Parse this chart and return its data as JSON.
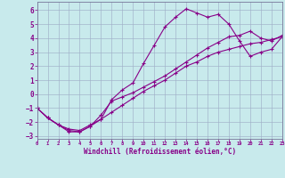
{
  "xlabel": "Windchill (Refroidissement éolien,°C)",
  "xlim": [
    0,
    23
  ],
  "ylim": [
    -3.2,
    6.6
  ],
  "xticks": [
    0,
    1,
    2,
    3,
    4,
    5,
    6,
    7,
    8,
    9,
    10,
    11,
    12,
    13,
    14,
    15,
    16,
    17,
    18,
    19,
    20,
    21,
    22,
    23
  ],
  "yticks": [
    -3,
    -2,
    -1,
    0,
    1,
    2,
    3,
    4,
    5,
    6
  ],
  "background_color": "#c8eaec",
  "line_color": "#880088",
  "grid_color": "#a0b0c8",
  "line1_x": [
    0,
    1,
    2,
    3,
    4,
    5,
    6,
    7,
    8,
    9,
    10,
    11,
    12,
    13,
    14,
    15,
    16,
    17,
    18,
    19,
    20,
    21,
    22,
    23
  ],
  "line1_y": [
    -1.0,
    -1.7,
    -2.2,
    -2.5,
    -2.6,
    -2.2,
    -1.8,
    -1.3,
    -0.8,
    -0.3,
    0.2,
    0.6,
    1.0,
    1.5,
    2.0,
    2.3,
    2.7,
    3.0,
    3.2,
    3.4,
    3.6,
    3.7,
    3.9,
    4.1
  ],
  "line2_x": [
    0,
    1,
    2,
    3,
    4,
    5,
    6,
    7,
    8,
    9,
    10,
    11,
    12,
    13,
    14,
    15,
    16,
    17,
    18,
    19,
    20,
    21,
    22,
    23
  ],
  "line2_y": [
    -1.0,
    -1.7,
    -2.2,
    -2.7,
    -2.7,
    -2.3,
    -1.8,
    -0.4,
    0.3,
    0.8,
    2.2,
    3.5,
    4.8,
    5.5,
    6.1,
    5.8,
    5.5,
    5.7,
    5.0,
    3.8,
    2.7,
    3.0,
    3.2,
    4.1
  ],
  "line3_x": [
    0,
    1,
    2,
    3,
    4,
    5,
    6,
    7,
    8,
    9,
    10,
    11,
    12,
    13,
    14,
    15,
    16,
    17,
    18,
    19,
    20,
    21,
    22,
    23
  ],
  "line3_y": [
    -1.0,
    -1.7,
    -2.2,
    -2.6,
    -2.7,
    -2.3,
    -1.5,
    -0.5,
    -0.2,
    0.1,
    0.5,
    0.9,
    1.3,
    1.8,
    2.3,
    2.8,
    3.3,
    3.7,
    4.1,
    4.2,
    4.5,
    4.0,
    3.8,
    4.2
  ]
}
